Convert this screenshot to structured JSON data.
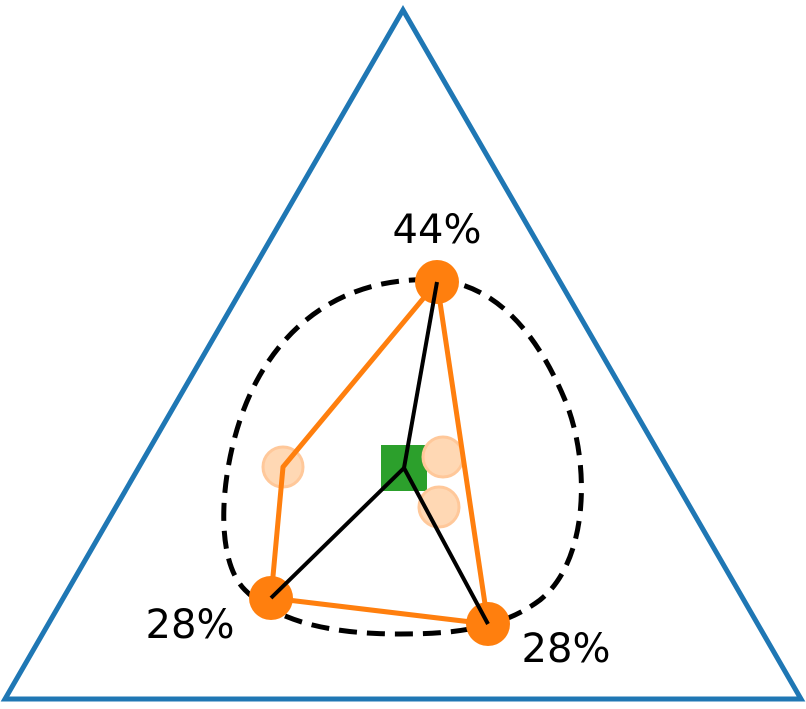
{
  "labels": [
    "44%",
    "28%",
    "28%"
  ]
}
